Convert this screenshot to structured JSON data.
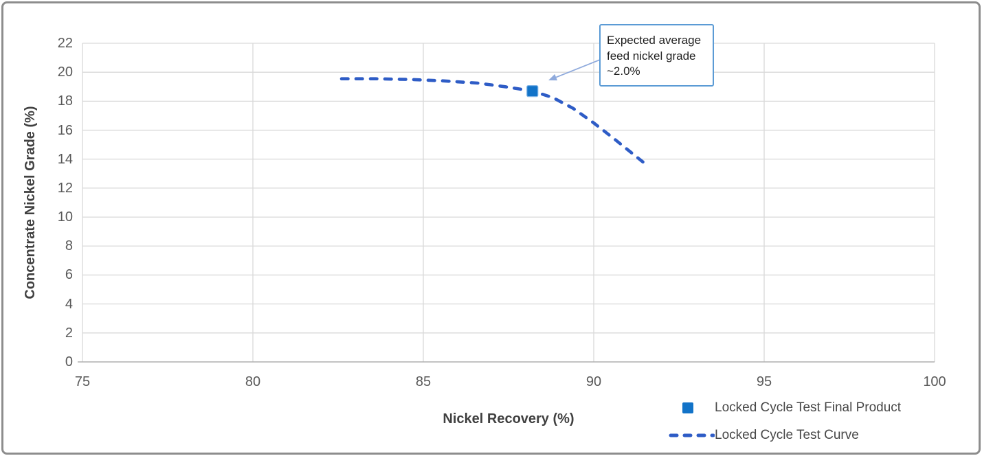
{
  "frame": {
    "border_color": "#8d8d8d",
    "background": "#ffffff"
  },
  "chart_data": {
    "type": "line",
    "title": "",
    "xlabel": "Nickel Recovery (%)",
    "ylabel": "Concentrate Nickel Grade (%)",
    "xlim": [
      75,
      100
    ],
    "ylim": [
      0,
      22
    ],
    "x_ticks": [
      75,
      80,
      85,
      90,
      95,
      100
    ],
    "y_ticks": [
      0,
      2,
      4,
      6,
      8,
      10,
      12,
      14,
      16,
      18,
      20,
      22
    ],
    "grid": true,
    "legend_position": "bottom-right",
    "colors": {
      "grid": "#D9D9D9",
      "axis_line": "#AFAFAF",
      "tick_label": "#595959",
      "axis_title": "#404040",
      "legend_text": "#474747"
    },
    "series": [
      {
        "name": "Locked Cycle Test Final Product",
        "type": "scatter",
        "marker": "square",
        "color": "#1273C8",
        "points": [
          [
            88.2,
            18.7
          ]
        ]
      },
      {
        "name": "Locked Cycle Test Curve",
        "type": "line",
        "line_style": "dashed",
        "color": "#2E5CC6",
        "points": [
          [
            82.6,
            19.55
          ],
          [
            83.6,
            19.55
          ],
          [
            84.6,
            19.5
          ],
          [
            85.6,
            19.4
          ],
          [
            86.6,
            19.25
          ],
          [
            87.4,
            19.0
          ],
          [
            88.2,
            18.7
          ],
          [
            88.8,
            18.25
          ],
          [
            89.4,
            17.5
          ],
          [
            90.0,
            16.5
          ],
          [
            90.6,
            15.4
          ],
          [
            91.1,
            14.45
          ],
          [
            91.5,
            13.7
          ]
        ]
      }
    ],
    "annotation": {
      "text": "Expected average feed nickel grade ~2.0%",
      "border_color": "#5B9BD5",
      "arrow_color": "#8FAADC",
      "arrow_start": [
        90.18,
        20.86
      ],
      "arrow_end": [
        88.67,
        19.44
      ]
    }
  }
}
